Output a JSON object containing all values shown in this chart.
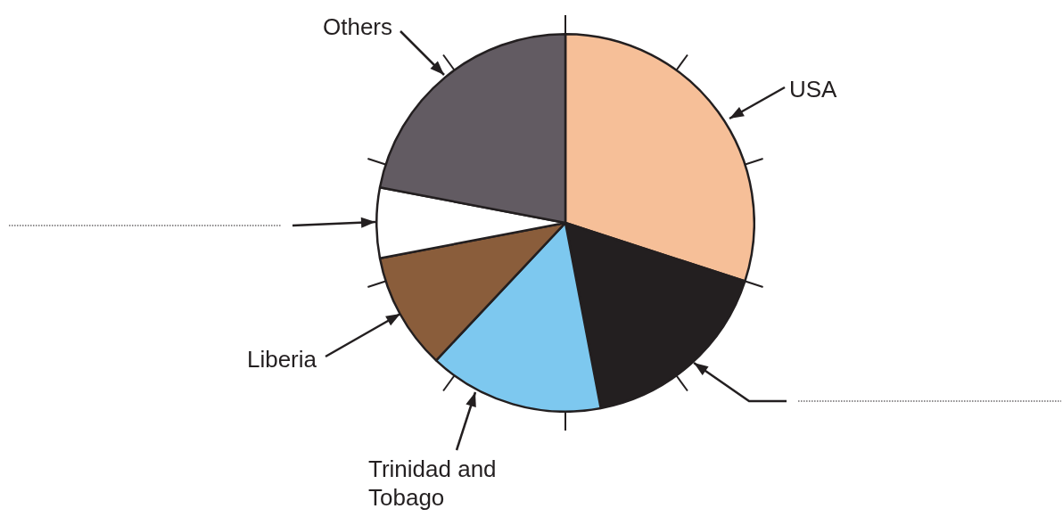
{
  "chart_data": {
    "type": "pie",
    "categories": [
      "USA",
      null,
      "Trinidad and Tobago",
      "Liberia",
      null,
      "Others"
    ],
    "values": [
      30,
      17,
      15,
      10,
      6,
      22
    ],
    "colors": [
      "#f6bf98",
      "#231f20",
      "#7dc8ef",
      "#8a5d3b",
      "#ffffff",
      "#625b62"
    ],
    "legend": false
  }
}
